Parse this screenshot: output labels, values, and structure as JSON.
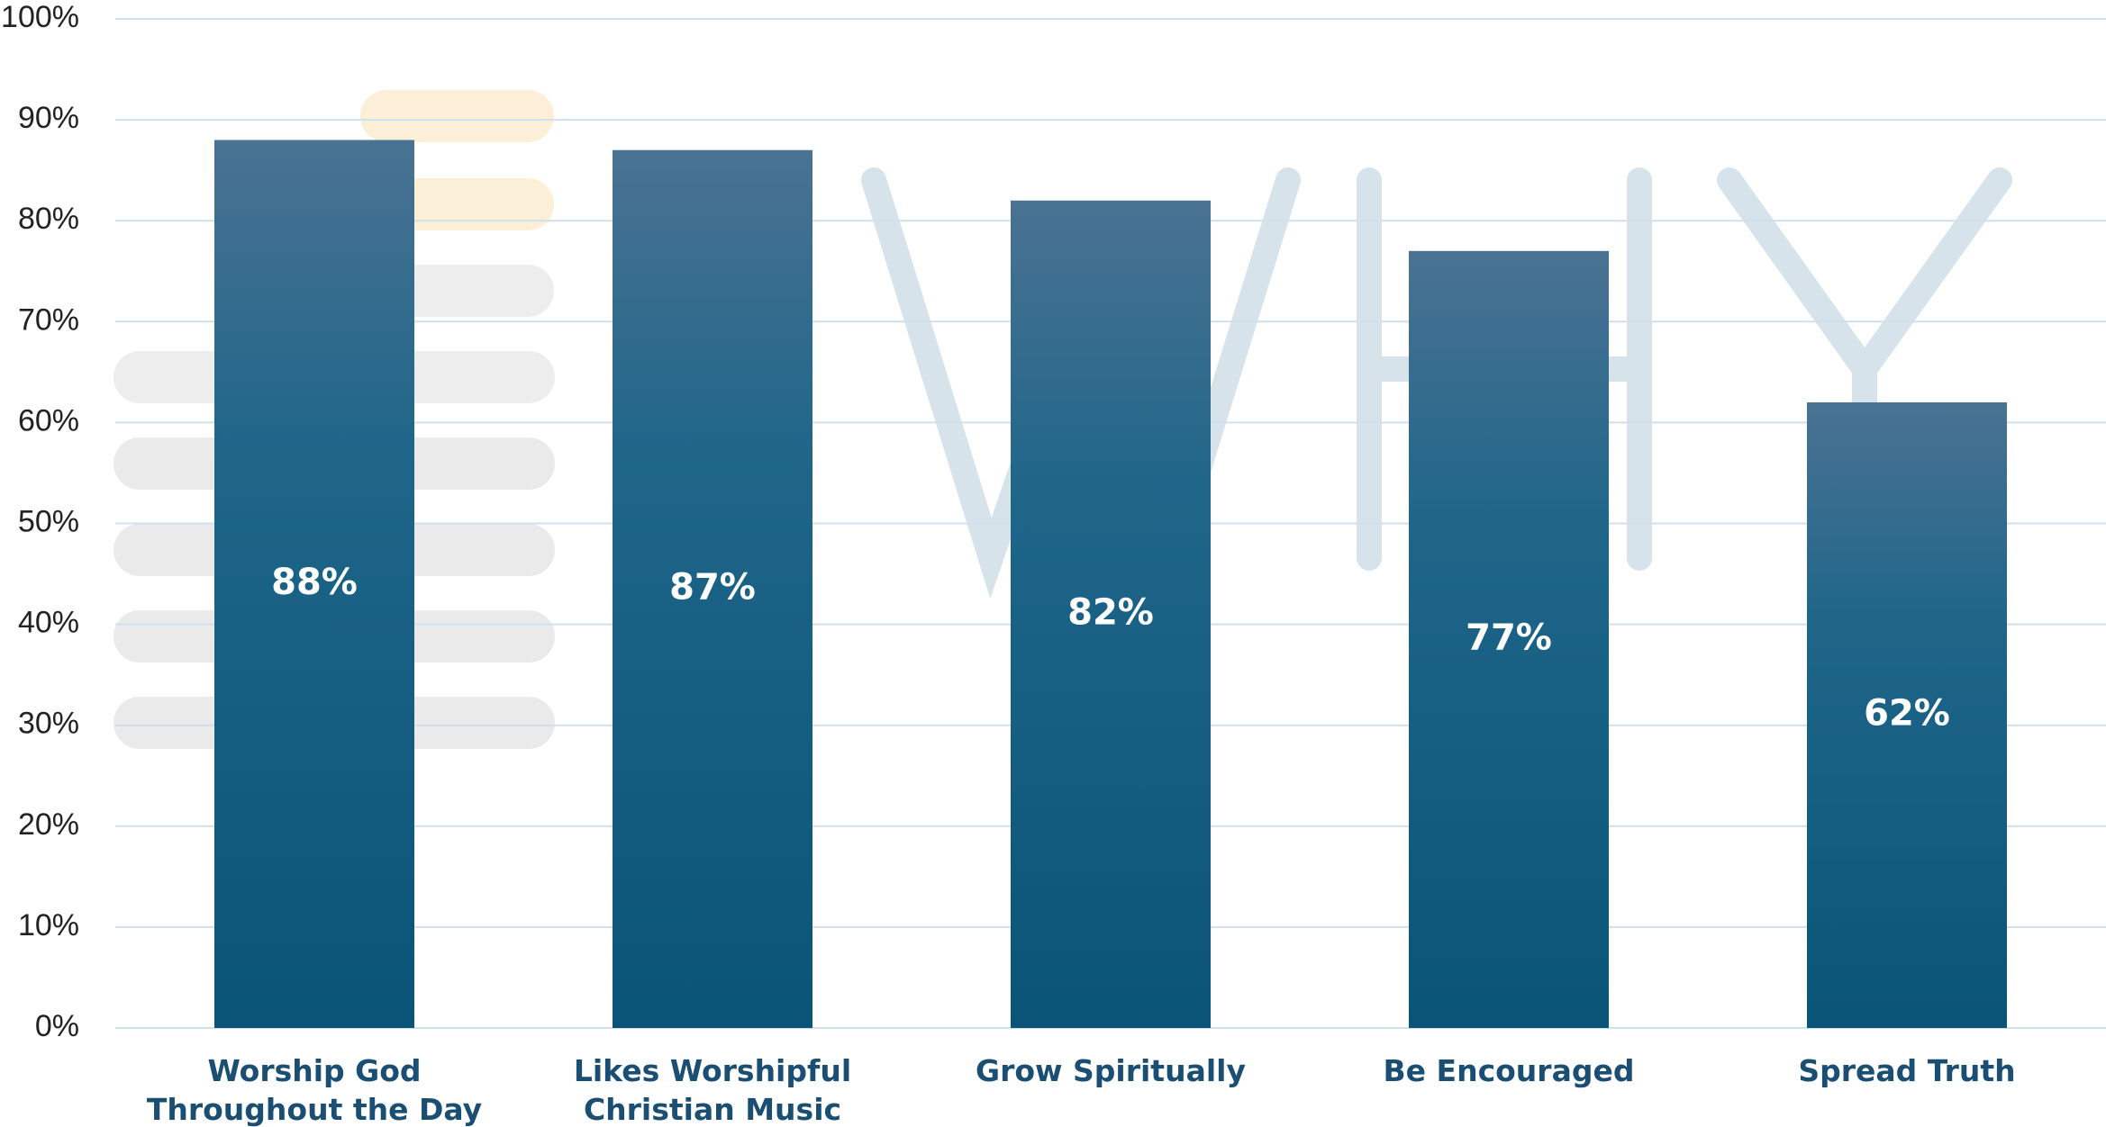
{
  "chart_data": {
    "type": "bar",
    "categories": [
      "Worship God Throughout the Day",
      "Likes Worshipful Christian Music",
      "Grow Spiritually",
      "Be Encouraged",
      "Spread Truth"
    ],
    "values": [
      88,
      87,
      82,
      77,
      62
    ],
    "value_labels": [
      "88%",
      "87%",
      "82%",
      "77%",
      "62%"
    ],
    "color": "#0f5a7e",
    "ylim": [
      0,
      100
    ],
    "yticks": [
      {
        "value": 0,
        "label": "0%"
      },
      {
        "value": 10,
        "label": "10%"
      },
      {
        "value": 20,
        "label": "20%"
      },
      {
        "value": 30,
        "label": "30%"
      },
      {
        "value": 40,
        "label": "40%"
      },
      {
        "value": 50,
        "label": "50%"
      },
      {
        "value": 60,
        "label": "60%"
      },
      {
        "value": 70,
        "label": "70%"
      },
      {
        "value": 80,
        "label": "80%"
      },
      {
        "value": 90,
        "label": "90%"
      },
      {
        "value": 100,
        "label": "100%"
      }
    ],
    "grid": true
  }
}
